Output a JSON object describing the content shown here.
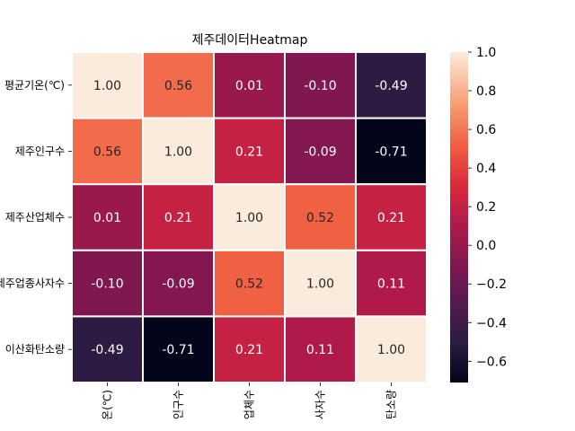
{
  "chart_data": {
    "type": "heatmap",
    "title": "제주데이터Heatmap",
    "row_labels": [
      "평균기온(℃)",
      "제주인구수",
      "제주산업체수",
      "제주업종사자수",
      "이산화탄소량"
    ],
    "col_labels": [
      "온(℃)",
      "인구수",
      "업체수",
      "사자수",
      "탄소량"
    ],
    "values": [
      [
        1.0,
        0.56,
        0.01,
        -0.1,
        -0.49
      ],
      [
        0.56,
        1.0,
        0.21,
        -0.09,
        -0.71
      ],
      [
        0.01,
        0.21,
        1.0,
        0.52,
        0.21
      ],
      [
        -0.1,
        -0.09,
        0.52,
        1.0,
        0.11
      ],
      [
        -0.49,
        -0.71,
        0.21,
        0.11,
        1.0
      ]
    ],
    "annotations": [
      [
        "1.00",
        "0.56",
        "0.01",
        "-0.10",
        "-0.49"
      ],
      [
        "0.56",
        "1.00",
        "0.21",
        "-0.09",
        "-0.71"
      ],
      [
        "0.01",
        "0.21",
        "1.00",
        "0.52",
        "0.21"
      ],
      [
        "-0.10",
        "-0.09",
        "0.52",
        "1.00",
        "0.11"
      ],
      [
        "-0.49",
        "-0.71",
        "0.21",
        "0.11",
        "1.00"
      ]
    ],
    "colorbar": {
      "colormap": "rocket",
      "vmin": -0.71,
      "vmax": 1.0,
      "ticks": [
        "1.0",
        "0.8",
        "0.6",
        "0.4",
        "0.2",
        "0.0",
        "−0.2",
        "−0.4",
        "−0.6"
      ],
      "tick_values": [
        1.0,
        0.8,
        0.6,
        0.4,
        0.2,
        0.0,
        -0.2,
        -0.4,
        -0.6
      ]
    },
    "grid_lines": true,
    "grid_color": "#ffffff",
    "legend": "colorbar-right"
  }
}
